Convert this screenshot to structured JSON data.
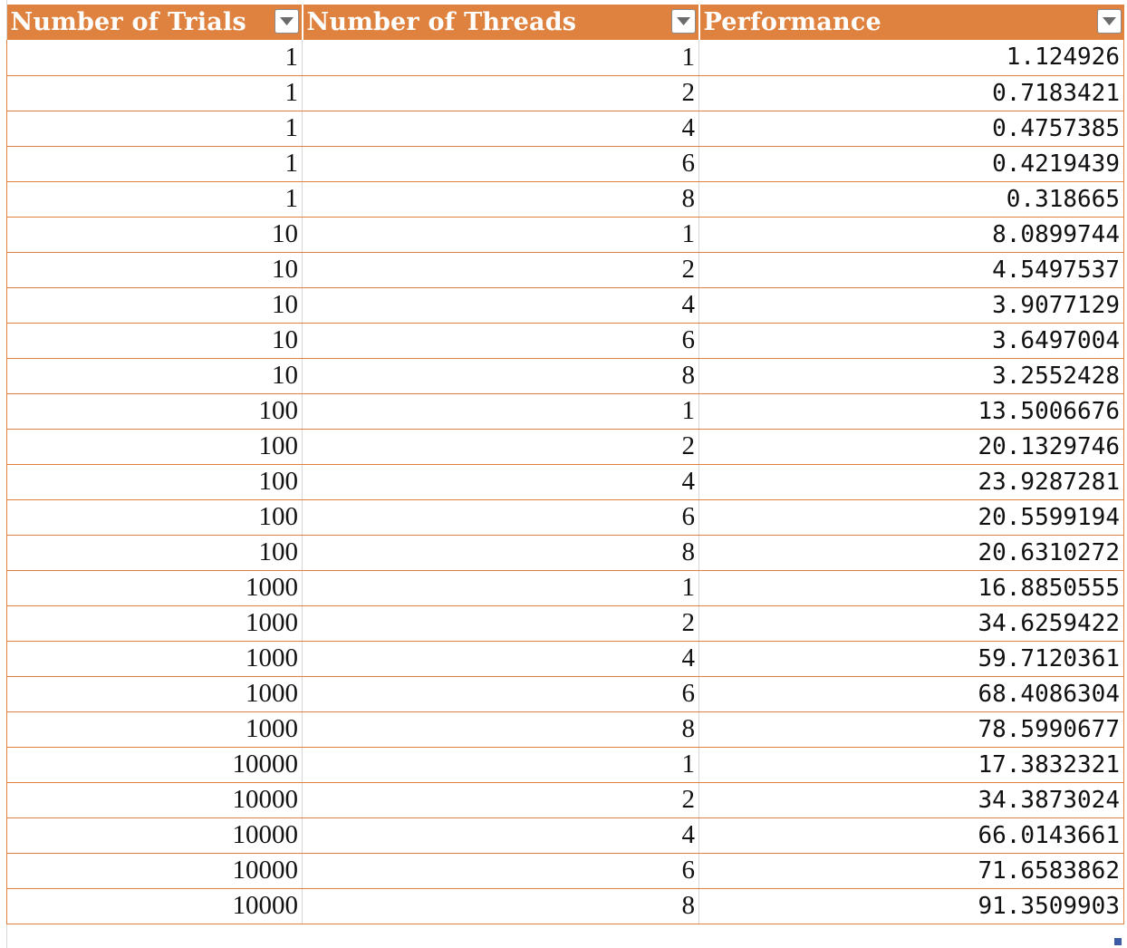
{
  "table": {
    "headers": {
      "trials": "Number of Trials",
      "threads": "Number of Threads",
      "performance": "Performance"
    },
    "header_color": "#e0823f",
    "rows": [
      {
        "trials": "1",
        "threads": "1",
        "performance": "1.124926"
      },
      {
        "trials": "1",
        "threads": "2",
        "performance": "0.7183421"
      },
      {
        "trials": "1",
        "threads": "4",
        "performance": "0.4757385"
      },
      {
        "trials": "1",
        "threads": "6",
        "performance": "0.4219439"
      },
      {
        "trials": "1",
        "threads": "8",
        "performance": "0.318665"
      },
      {
        "trials": "10",
        "threads": "1",
        "performance": "8.0899744"
      },
      {
        "trials": "10",
        "threads": "2",
        "performance": "4.5497537"
      },
      {
        "trials": "10",
        "threads": "4",
        "performance": "3.9077129"
      },
      {
        "trials": "10",
        "threads": "6",
        "performance": "3.6497004"
      },
      {
        "trials": "10",
        "threads": "8",
        "performance": "3.2552428"
      },
      {
        "trials": "100",
        "threads": "1",
        "performance": "13.5006676"
      },
      {
        "trials": "100",
        "threads": "2",
        "performance": "20.1329746"
      },
      {
        "trials": "100",
        "threads": "4",
        "performance": "23.9287281"
      },
      {
        "trials": "100",
        "threads": "6",
        "performance": "20.5599194"
      },
      {
        "trials": "100",
        "threads": "8",
        "performance": "20.6310272"
      },
      {
        "trials": "1000",
        "threads": "1",
        "performance": "16.8850555"
      },
      {
        "trials": "1000",
        "threads": "2",
        "performance": "34.6259422"
      },
      {
        "trials": "1000",
        "threads": "4",
        "performance": "59.7120361"
      },
      {
        "trials": "1000",
        "threads": "6",
        "performance": "68.4086304"
      },
      {
        "trials": "1000",
        "threads": "8",
        "performance": "78.5990677"
      },
      {
        "trials": "10000",
        "threads": "1",
        "performance": "17.3832321"
      },
      {
        "trials": "10000",
        "threads": "2",
        "performance": "34.3873024"
      },
      {
        "trials": "10000",
        "threads": "4",
        "performance": "66.0143661"
      },
      {
        "trials": "10000",
        "threads": "6",
        "performance": "71.6583862"
      },
      {
        "trials": "10000",
        "threads": "8",
        "performance": "91.3509903"
      }
    ]
  }
}
